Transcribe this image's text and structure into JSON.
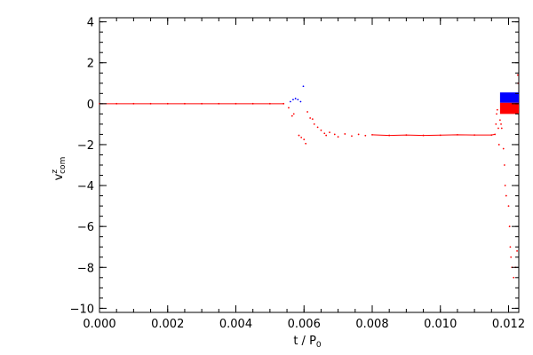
{
  "chart_data": {
    "type": "scatter",
    "title": "",
    "xlabel": "t / P",
    "xlabel_sub": "0",
    "ylabel": "v",
    "ylabel_sup": "z",
    "ylabel_sub": "com",
    "xlim": [
      0.0,
      0.0123
    ],
    "ylim": [
      -10.2,
      4.2
    ],
    "x_ticks": [
      0.0,
      0.002,
      0.004,
      0.006,
      0.008,
      0.01,
      0.012
    ],
    "x_tick_labels": [
      "0.000",
      "0.002",
      "0.004",
      "0.006",
      "0.008",
      "0.010",
      "0.012"
    ],
    "y_ticks": [
      -10,
      -8,
      -6,
      -4,
      -2,
      0,
      2,
      4
    ],
    "y_tick_labels": [
      "−10",
      "−8",
      "−6",
      "−4",
      "−2",
      "0",
      "2",
      "4"
    ],
    "x_minor_step": 0.0005,
    "y_minor_step": 0.5,
    "grid": false,
    "legend": "none",
    "series": [
      {
        "color": "#ff0000",
        "points": [
          [
            0.0,
            0.0
          ],
          [
            0.0005,
            0.0
          ],
          [
            0.001,
            0.0
          ],
          [
            0.0015,
            0.0
          ],
          [
            0.002,
            0.0
          ],
          [
            0.0025,
            0.0
          ],
          [
            0.003,
            0.0
          ],
          [
            0.0035,
            0.0
          ],
          [
            0.004,
            0.0
          ],
          [
            0.0045,
            0.0
          ],
          [
            0.005,
            0.0
          ],
          [
            0.0054,
            0.0
          ],
          [
            0.00555,
            -0.2
          ],
          [
            0.00565,
            -0.6
          ],
          [
            0.0057,
            -0.5
          ],
          [
            0.00585,
            -1.55
          ],
          [
            0.00592,
            -1.65
          ],
          [
            0.006,
            -1.75
          ],
          [
            0.00605,
            -1.95
          ],
          [
            0.0061,
            -0.4
          ],
          [
            0.00618,
            -0.7
          ],
          [
            0.00625,
            -0.75
          ],
          [
            0.0063,
            -1.0
          ],
          [
            0.0064,
            -1.15
          ],
          [
            0.0065,
            -1.3
          ],
          [
            0.0066,
            -1.45
          ],
          [
            0.00665,
            -1.55
          ],
          [
            0.00675,
            -1.4
          ],
          [
            0.0069,
            -1.5
          ],
          [
            0.007,
            -1.62
          ],
          [
            0.0072,
            -1.48
          ],
          [
            0.0074,
            -1.58
          ],
          [
            0.0076,
            -1.5
          ],
          [
            0.0078,
            -1.56
          ],
          [
            0.008,
            -1.52
          ],
          [
            0.0085,
            -1.55
          ],
          [
            0.009,
            -1.53
          ],
          [
            0.0095,
            -1.55
          ],
          [
            0.01,
            -1.54
          ],
          [
            0.0105,
            -1.52
          ],
          [
            0.011,
            -1.53
          ],
          [
            0.0115,
            -1.53
          ],
          [
            0.0116,
            -1.5
          ],
          [
            0.01163,
            -1.0
          ],
          [
            0.01165,
            -0.5
          ],
          [
            0.01167,
            -0.3
          ],
          [
            0.0117,
            -1.2
          ],
          [
            0.01172,
            -2.0
          ],
          [
            0.01175,
            -0.8
          ],
          [
            0.01178,
            -1.0
          ],
          [
            0.0118,
            -1.2
          ],
          [
            0.01185,
            -2.2
          ],
          [
            0.01188,
            -3.0
          ],
          [
            0.0119,
            -4.0
          ],
          [
            0.01193,
            -4.5
          ],
          [
            0.012,
            -5.0
          ],
          [
            0.01203,
            -6.0
          ],
          [
            0.01205,
            -7.0
          ],
          [
            0.01207,
            -7.5
          ],
          [
            0.0121,
            -8.0
          ],
          [
            0.01215,
            -8.5
          ],
          [
            0.0122,
            -8.0
          ],
          [
            0.01225,
            -7.2
          ],
          [
            0.01228,
            1.0
          ],
          [
            0.01227,
            1.4
          ]
        ],
        "bands": [
          {
            "x": [
              0.01175,
              0.0123
            ],
            "y": [
              -0.5,
              0.05
            ]
          }
        ]
      },
      {
        "color": "#0000ff",
        "points": [
          [
            0.0056,
            0.1
          ],
          [
            0.00568,
            0.2
          ],
          [
            0.00575,
            0.25
          ],
          [
            0.00582,
            0.2
          ],
          [
            0.0059,
            0.1
          ],
          [
            0.00598,
            0.85
          ]
        ],
        "bands": [
          {
            "x": [
              0.01175,
              0.0123
            ],
            "y": [
              0.05,
              0.55
            ]
          }
        ]
      }
    ]
  }
}
